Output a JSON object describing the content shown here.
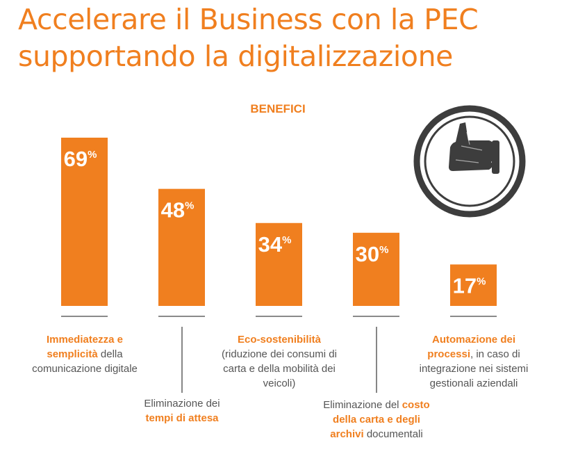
{
  "page": {
    "title_lines": [
      "Accelerare il Business con la PEC",
      "supportando la digitalizzazione"
    ]
  },
  "chart_data": {
    "type": "bar",
    "title": "BENEFICI",
    "categories": [
      "Immediatezza e semplicità della comunicazione digitale",
      "Eliminazione dei tempi di attesa",
      "Eco-sostenibilità (riduzione dei consumi di carta e della mobilità dei veicoli)",
      "Eliminazione del costo della carta e degli archivi documentali",
      "Automazione dei processi, in caso di integrazione nei sistemi gestionali aziendali"
    ],
    "values": [
      69,
      48,
      34,
      30,
      17
    ],
    "unit": "%",
    "ylim": [
      0,
      69
    ],
    "grid": false,
    "bar_color": "#f07f1f"
  },
  "labels": [
    {
      "lines": [
        [
          {
            "t": "Immediatezza e",
            "b": true
          }
        ],
        [
          {
            "t": "semplicità",
            "b": true
          },
          {
            "t": " della",
            "b": false
          }
        ],
        [
          {
            "t": "comunicazione digitale",
            "b": false
          }
        ]
      ]
    },
    {
      "lines": [
        [
          {
            "t": "Eliminazione dei",
            "b": false
          }
        ],
        [
          {
            "t": "tempi di attesa",
            "b": true
          }
        ]
      ]
    },
    {
      "lines": [
        [
          {
            "t": "Eco-sostenibilità",
            "b": true
          }
        ],
        [
          {
            "t": "(riduzione dei consumi di",
            "b": false
          }
        ],
        [
          {
            "t": "carta e della mobilità dei",
            "b": false
          }
        ],
        [
          {
            "t": "veicoli)",
            "b": false
          }
        ]
      ]
    },
    {
      "lines": [
        [
          {
            "t": "Eliminazione del ",
            "b": false
          },
          {
            "t": "costo",
            "b": true
          }
        ],
        [
          {
            "t": "della carta e degli",
            "b": true
          }
        ],
        [
          {
            "t": "archivi",
            "b": true
          },
          {
            "t": " documentali",
            "b": false
          }
        ]
      ]
    },
    {
      "lines": [
        [
          {
            "t": "Automazione dei",
            "b": true
          }
        ],
        [
          {
            "t": "processi",
            "b": true
          },
          {
            "t": ", in caso di",
            "b": false
          }
        ],
        [
          {
            "t": "integrazione nei sistemi",
            "b": false
          }
        ],
        [
          {
            "t": "gestionali aziendali",
            "b": false
          }
        ]
      ]
    }
  ],
  "stamp": {
    "icon": "thumbs-up-icon",
    "ring_color": "#3d3d3d"
  }
}
